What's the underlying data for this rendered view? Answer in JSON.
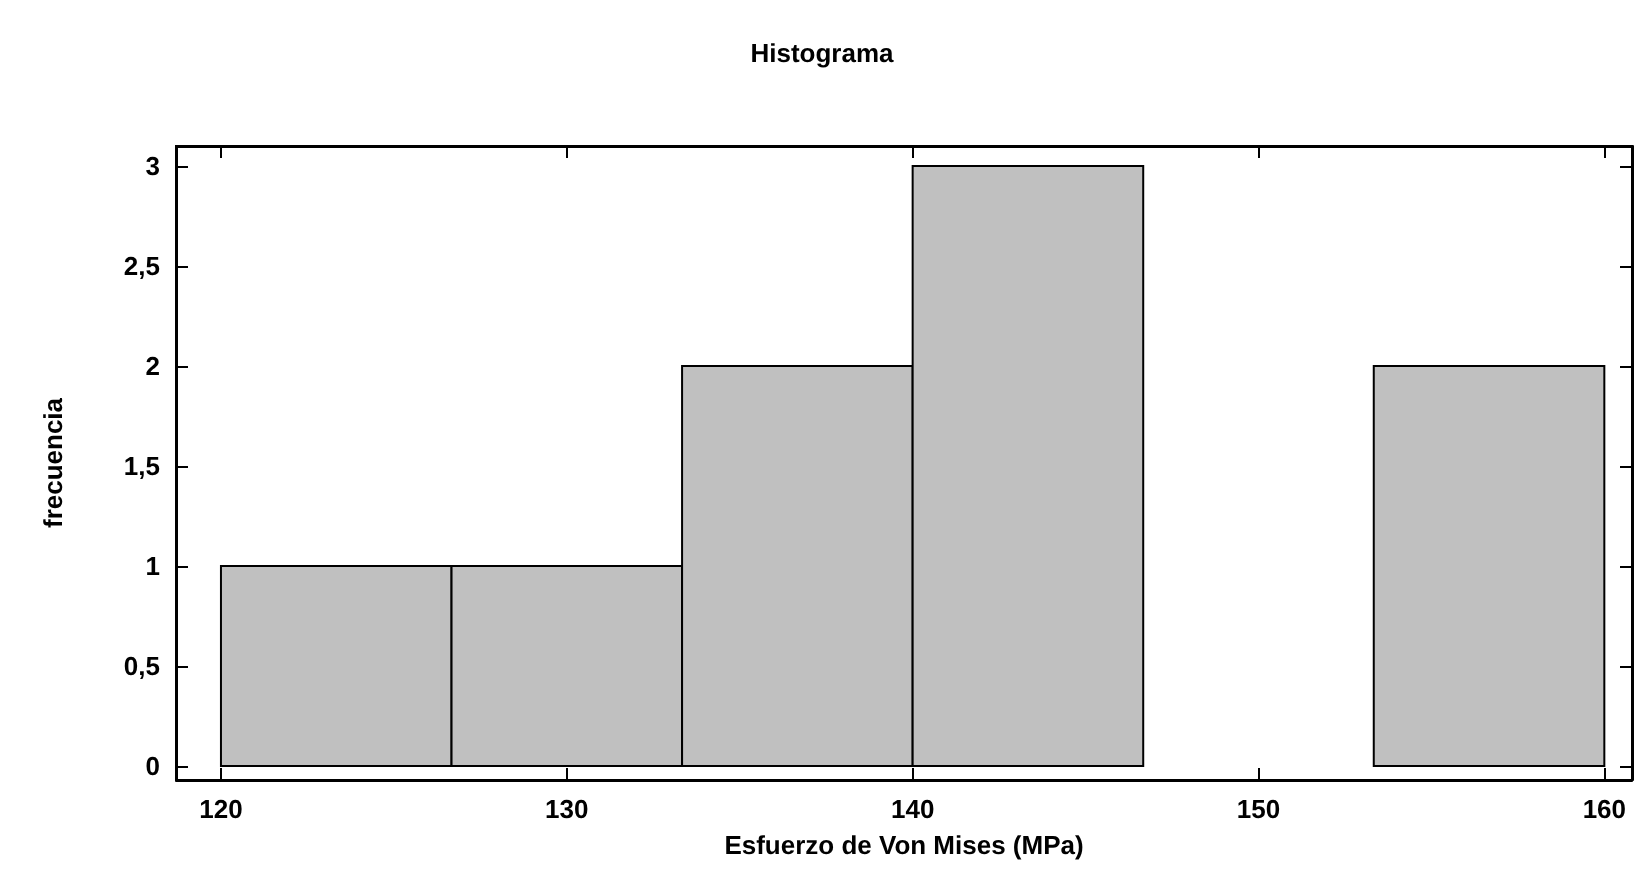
{
  "chart_data": {
    "type": "histogram",
    "title": "Histograma",
    "xlabel": "Esfuerzo de Von Mises (MPa)",
    "ylabel": "frecuencia",
    "bins": [
      120,
      126.667,
      133.333,
      140,
      146.667,
      153.333,
      160
    ],
    "values": [
      1,
      1,
      2,
      3,
      0,
      2
    ],
    "color": "#c0c0c0",
    "xlim": [
      118.7,
      160.8
    ],
    "xticks": [
      120,
      130,
      140,
      150,
      160
    ],
    "ylim": [
      -0.07,
      3.1
    ],
    "yticks": [
      0,
      {
        "value": 0.5,
        "label": "0,5"
      },
      1,
      {
        "value": 1.5,
        "label": "1,5"
      },
      2,
      {
        "value": 2.5,
        "label": "2,5"
      },
      3
    ],
    "grid": false
  }
}
